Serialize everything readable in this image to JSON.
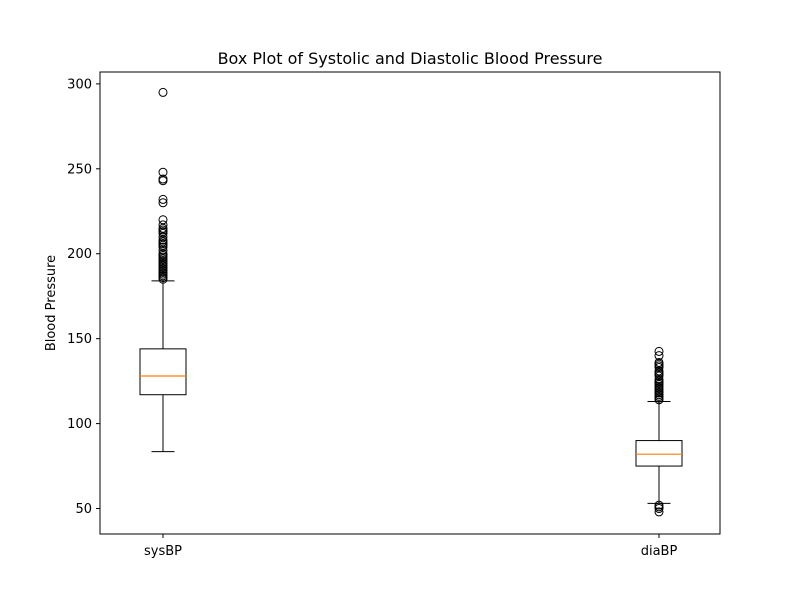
{
  "chart_data": {
    "type": "box",
    "title": "Box Plot of Systolic and Diastolic Blood Pressure",
    "xlabel": "",
    "ylabel": "Blood Pressure",
    "ylim": [
      35,
      307
    ],
    "yticks": [
      50,
      100,
      150,
      200,
      250,
      300
    ],
    "grid": false,
    "categories": [
      "sysBP",
      "diaBP"
    ],
    "boxes": [
      {
        "category": "sysBP",
        "whisker_low": 83.5,
        "q1": 117,
        "median": 128,
        "q3": 144,
        "whisker_high": 184,
        "outliers": [
          185,
          186,
          187,
          188,
          189,
          190,
          191,
          192,
          193,
          194,
          195,
          196,
          197,
          198,
          199,
          200,
          202,
          204,
          205,
          206,
          207,
          208,
          210,
          212,
          213,
          214,
          215,
          217,
          220,
          230,
          232,
          243,
          244,
          248,
          295
        ]
      },
      {
        "category": "diaBP",
        "whisker_low": 53,
        "q1": 75,
        "median": 82,
        "q3": 90,
        "whisker_high": 113,
        "outliers": [
          48,
          50,
          51,
          52,
          114,
          115,
          116,
          117,
          118,
          119,
          120,
          121,
          122,
          123,
          124,
          125,
          126,
          128,
          129,
          130,
          131,
          133,
          134,
          135,
          136,
          140,
          142.5
        ]
      }
    ],
    "colors": {
      "box": "#000000",
      "median": "#ff7f0e",
      "background": "#ffffff"
    }
  }
}
